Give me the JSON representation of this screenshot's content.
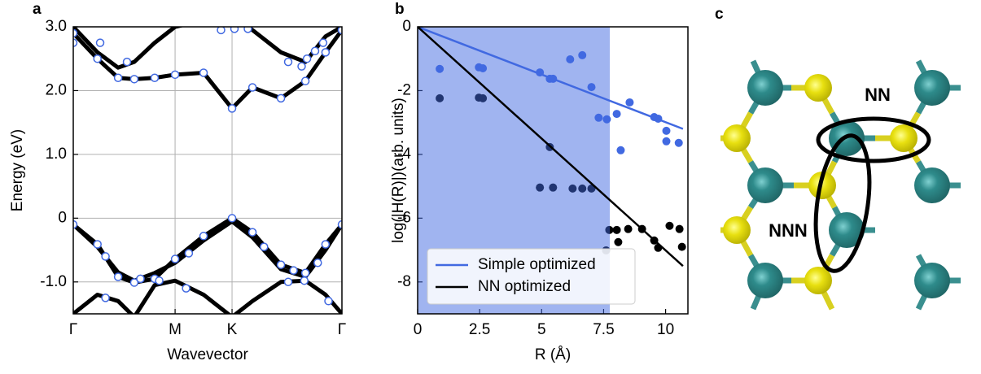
{
  "chart_data": [
    {
      "type": "line",
      "panel_label": "a",
      "xlabel": "Wavevector",
      "ylabel": "Energy (eV)",
      "xlim": [
        0,
        1
      ],
      "xticks": [
        {
          "value": 0,
          "label": "Γ"
        },
        {
          "value": 0.379,
          "label": "M"
        },
        {
          "value": 0.591,
          "label": "K"
        },
        {
          "value": 1,
          "label": "Γ"
        }
      ],
      "ylim": [
        -1.5,
        3.0
      ],
      "yticks": [
        {
          "value": 3,
          "label": "3.0"
        },
        {
          "value": 2,
          "label": "2.0"
        },
        {
          "value": 1,
          "label": "1.0"
        },
        0,
        {
          "value": -1,
          "label": "-1.0"
        }
      ],
      "grid": true,
      "series": [
        {
          "style": "line",
          "color": "#000000",
          "x": [
            0,
            0.09,
            0.167,
            0.227,
            0.303,
            0.379,
            0.485,
            0.591,
            0.667,
            0.773,
            0.864,
            0.939,
            1
          ],
          "values": [
            2.9,
            2.5,
            2.2,
            2.18,
            2.2,
            2.25,
            2.28,
            1.72,
            2.05,
            1.88,
            2.15,
            2.6,
            2.95
          ]
        },
        {
          "style": "line",
          "color": "#000000",
          "x": [
            0,
            0.09,
            0.167,
            0.227,
            0.303,
            0.379,
            0.485,
            0.591,
            0.667,
            0.773,
            0.864,
            0.939,
            1
          ],
          "values": [
            3.0,
            2.6,
            2.36,
            2.45,
            2.75,
            3.0,
            3.1,
            3.2,
            2.95,
            2.6,
            2.45,
            2.85,
            3.0
          ]
        },
        {
          "style": "line",
          "color": "#000000",
          "x": [
            0,
            0.09,
            0.167,
            0.227,
            0.303,
            0.379,
            0.485,
            0.591,
            0.667,
            0.773,
            0.864,
            0.939,
            1
          ],
          "values": [
            -0.1,
            -0.41,
            -0.92,
            -1.01,
            -0.95,
            -0.64,
            -0.28,
            0,
            -0.22,
            -0.73,
            -0.86,
            -0.41,
            -0.1
          ]
        },
        {
          "style": "line",
          "color": "#000000",
          "x": [
            0,
            0.09,
            0.167,
            0.227,
            0.303,
            0.379,
            0.485,
            0.591,
            0.667,
            0.773,
            0.864,
            0.939,
            1
          ],
          "values": [
            -0.1,
            -0.45,
            -0.85,
            -0.98,
            -0.86,
            -0.7,
            -0.35,
            -0.05,
            -0.3,
            -0.8,
            -0.92,
            -0.5,
            -0.1
          ]
        },
        {
          "style": "line",
          "color": "#000000",
          "x": [
            0,
            0.09,
            0.167,
            0.227,
            0.303,
            0.379,
            0.485,
            0.591,
            0.667,
            0.773,
            0.864,
            0.939,
            1
          ],
          "values": [
            -1.5,
            -1.2,
            -1.3,
            -1.55,
            -1.05,
            -0.98,
            -1.2,
            -1.55,
            -1.3,
            -1.0,
            -0.98,
            -1.2,
            -1.5
          ]
        },
        {
          "style": "open-markers",
          "color": "#4169e1",
          "x": [
            0,
            0.09,
            0.167,
            0.227,
            0.303,
            0.379,
            0.485,
            0.591,
            0.667,
            0.773,
            0.864,
            0.939,
            1,
            0,
            0.09,
            0.167,
            0.227,
            0.303,
            0.379,
            0.485,
            0.591,
            0.667,
            0.773,
            0.864,
            0.939,
            1,
            0,
            0.1,
            0.2,
            0.55,
            0.6,
            0.65,
            0.8,
            0.85,
            0.87,
            0.9,
            0.93,
            0.12,
            0.25,
            0.43,
            0.71,
            0.82,
            0.91,
            0.12,
            0.32,
            0.42,
            0.8,
            0.86,
            0.95
          ],
          "values": [
            -0.1,
            -0.41,
            -0.92,
            -1.01,
            -0.95,
            -0.64,
            -0.28,
            0,
            -0.22,
            -0.73,
            -0.86,
            -0.41,
            -0.1,
            2.9,
            2.5,
            2.2,
            2.18,
            2.2,
            2.25,
            2.28,
            1.72,
            2.05,
            1.88,
            2.15,
            2.6,
            2.95,
            2.75,
            2.75,
            2.45,
            2.95,
            2.97,
            2.97,
            2.45,
            2.38,
            2.5,
            2.62,
            2.75,
            -0.6,
            -0.95,
            -0.55,
            -0.45,
            -0.82,
            -0.7,
            -1.25,
            -0.98,
            -1.1,
            -1.0,
            -0.98,
            -1.3
          ]
        }
      ]
    },
    {
      "type": "scatter",
      "panel_label": "b",
      "xlabel": "R (Å)",
      "ylabel": "log(|H(R)|)(arb. units)",
      "xlim": [
        0,
        10.9
      ],
      "xticks": [
        0,
        2.5,
        5,
        7.5,
        10
      ],
      "ylim": [
        -9,
        0
      ],
      "yticks": [
        0,
        -2,
        -4,
        -6,
        -8
      ],
      "grid": false,
      "shaded_xspan": [
        0,
        7.75
      ],
      "shade_color": "#4169e1",
      "legend": "lower left",
      "series": [
        {
          "style": "markers",
          "color": "#4169e1",
          "x": [
            0.89,
            2.47,
            2.63,
            4.93,
            5.33,
            5.46,
            6.15,
            6.64,
            7.01,
            7.3,
            7.63,
            8.03,
            8.19,
            8.55,
            9.54,
            9.7,
            10.03,
            10.03,
            10.53
          ],
          "values": [
            -1.32,
            -1.27,
            -1.3,
            -1.43,
            -1.63,
            -1.63,
            -1.02,
            -0.89,
            -1.89,
            -2.85,
            -2.9,
            -2.73,
            -3.87,
            -2.37,
            -2.83,
            -2.88,
            -3.26,
            -3.59,
            -3.64
          ]
        },
        {
          "style": "markers",
          "color": "#000000",
          "x": [
            0.89,
            2.47,
            2.63,
            5.33,
            4.93,
            5.46,
            6.25,
            6.64,
            7.01,
            7.6,
            7.73,
            8.03,
            8.09,
            8.49,
            9.05,
            9.54,
            9.7,
            10.16,
            10.56,
            10.66
          ],
          "values": [
            -2.24,
            -2.22,
            -2.24,
            -3.77,
            -5.04,
            -5.04,
            -5.07,
            -5.07,
            -5.07,
            -7.01,
            -6.37,
            -6.37,
            -6.75,
            -6.34,
            -6.34,
            -6.7,
            -6.93,
            -6.24,
            -6.34,
            -6.9
          ]
        },
        {
          "style": "line",
          "name": "Simple optimized",
          "color": "#4169e1",
          "x": [
            0,
            10.7
          ],
          "values": [
            0,
            -3.2
          ]
        },
        {
          "style": "line",
          "name": "NN optimized",
          "color": "#000000",
          "x": [
            0,
            10.7
          ],
          "values": [
            0,
            -7.5
          ]
        }
      ]
    }
  ],
  "diagram": {
    "panel_label": "c",
    "labels": [
      "NN",
      "NNN"
    ]
  }
}
